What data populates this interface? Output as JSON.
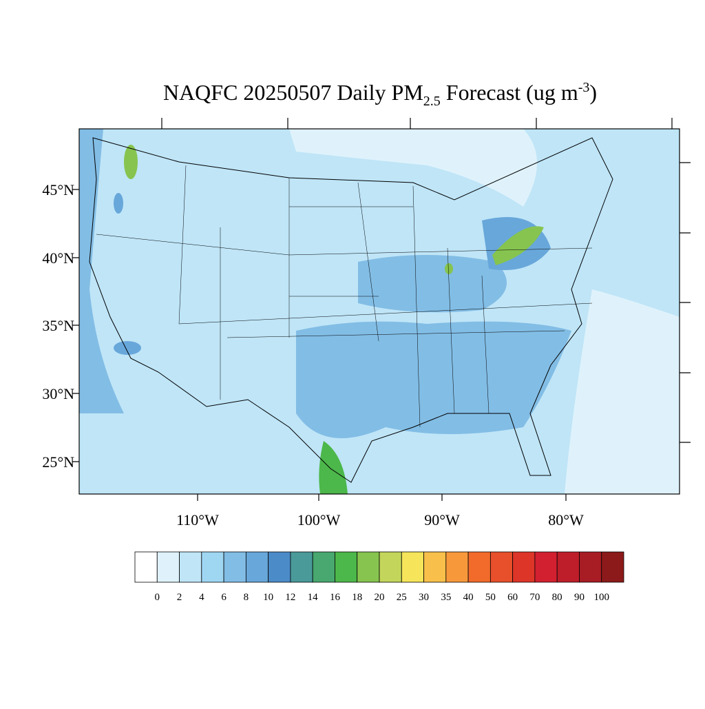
{
  "title": {
    "main": "NAQFC 20250507 Daily PM",
    "subscript": "2.5",
    "middle": " Forecast (ug m",
    "superscript": "-3",
    "end": ")"
  },
  "lat_labels": [
    "45°N",
    "40°N",
    "35°N",
    "30°N",
    "25°N"
  ],
  "lon_labels": [
    "110°W",
    "100°W",
    "90°W",
    "80°W"
  ],
  "colorbar": {
    "levels": [
      0,
      2,
      4,
      6,
      8,
      10,
      12,
      14,
      16,
      18,
      20,
      25,
      30,
      35,
      40,
      50,
      60,
      70,
      80,
      90,
      100
    ],
    "colors": [
      "#ffffff",
      "#dff2fb",
      "#bfe5f7",
      "#9fd7f3",
      "#82bde5",
      "#68a7da",
      "#4b8bc8",
      "#4a9a9a",
      "#48a86f",
      "#4cb74a",
      "#86c44f",
      "#c3d65b",
      "#f6e55a",
      "#f8c04b",
      "#f7993b",
      "#f26b2b",
      "#e8502b",
      "#dd3528",
      "#d32030",
      "#be1e2a",
      "#a81c24",
      "#8c1a1a"
    ]
  }
}
